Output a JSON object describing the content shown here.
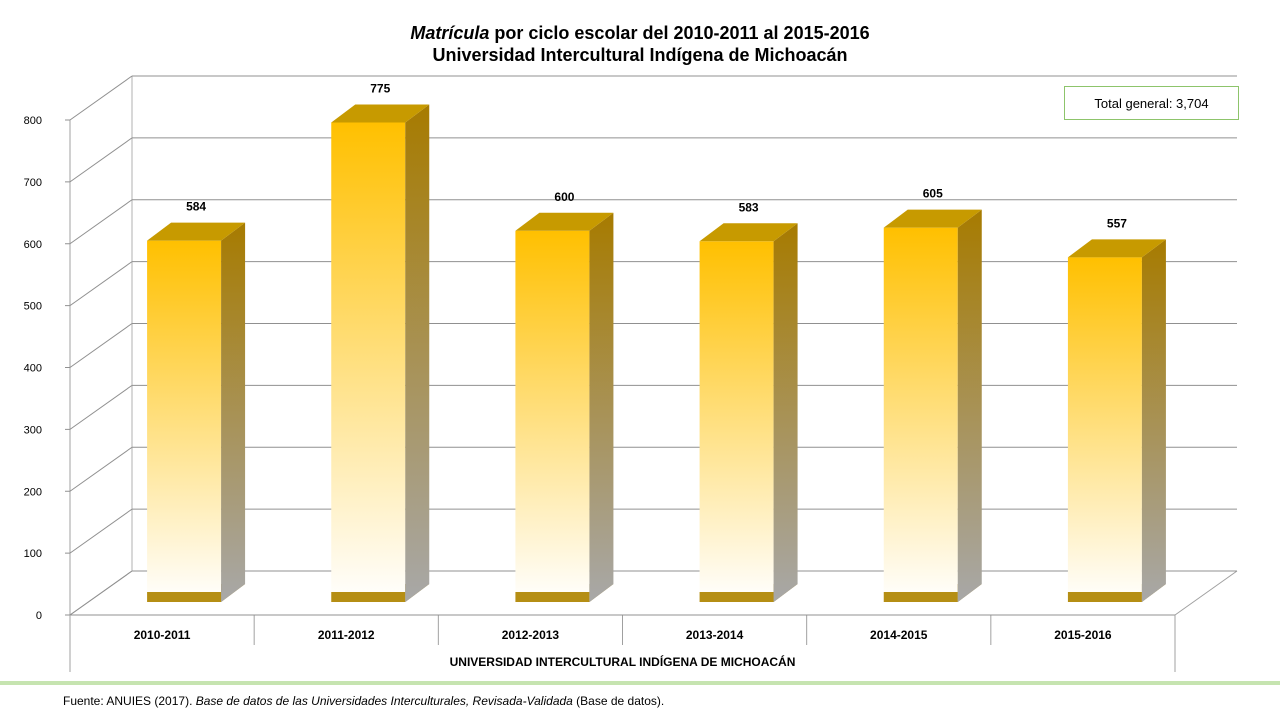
{
  "title": {
    "line1_italic": "Matrícula",
    "line1_rest": " por ciclo  escolar del  2010-2011 al 2015-2016",
    "line2": "Universidad Intercultural Indígena de Michoacán"
  },
  "total_label": "Total general: 3,704",
  "source": {
    "prefix": "Fuente:  ANUIES  (2017). ",
    "italic": "Base de datos de las Universidades  Interculturales, Revisada-Validada",
    "suffix": "  (Base de datos)."
  },
  "chart_data": {
    "type": "bar",
    "categories": [
      "2010-2011",
      "2011-2012",
      "2012-2013",
      "2013-2014",
      "2014-2015",
      "2015-2016"
    ],
    "values": [
      584,
      775,
      600,
      583,
      605,
      557
    ],
    "xlabel": "UNIVERSIDAD INTERCULTURAL INDÍGENA DE MICHOACÁN",
    "ylabel": "",
    "ylim": [
      0,
      800
    ],
    "yticks": [
      0,
      100,
      200,
      300,
      400,
      500,
      600,
      700,
      800
    ],
    "grid": true,
    "colors": {
      "bar_top": "#ffc000",
      "bar_bottom": "#ffffff",
      "bar_side": "#a07a10",
      "bar_cap": "#c09000"
    }
  }
}
